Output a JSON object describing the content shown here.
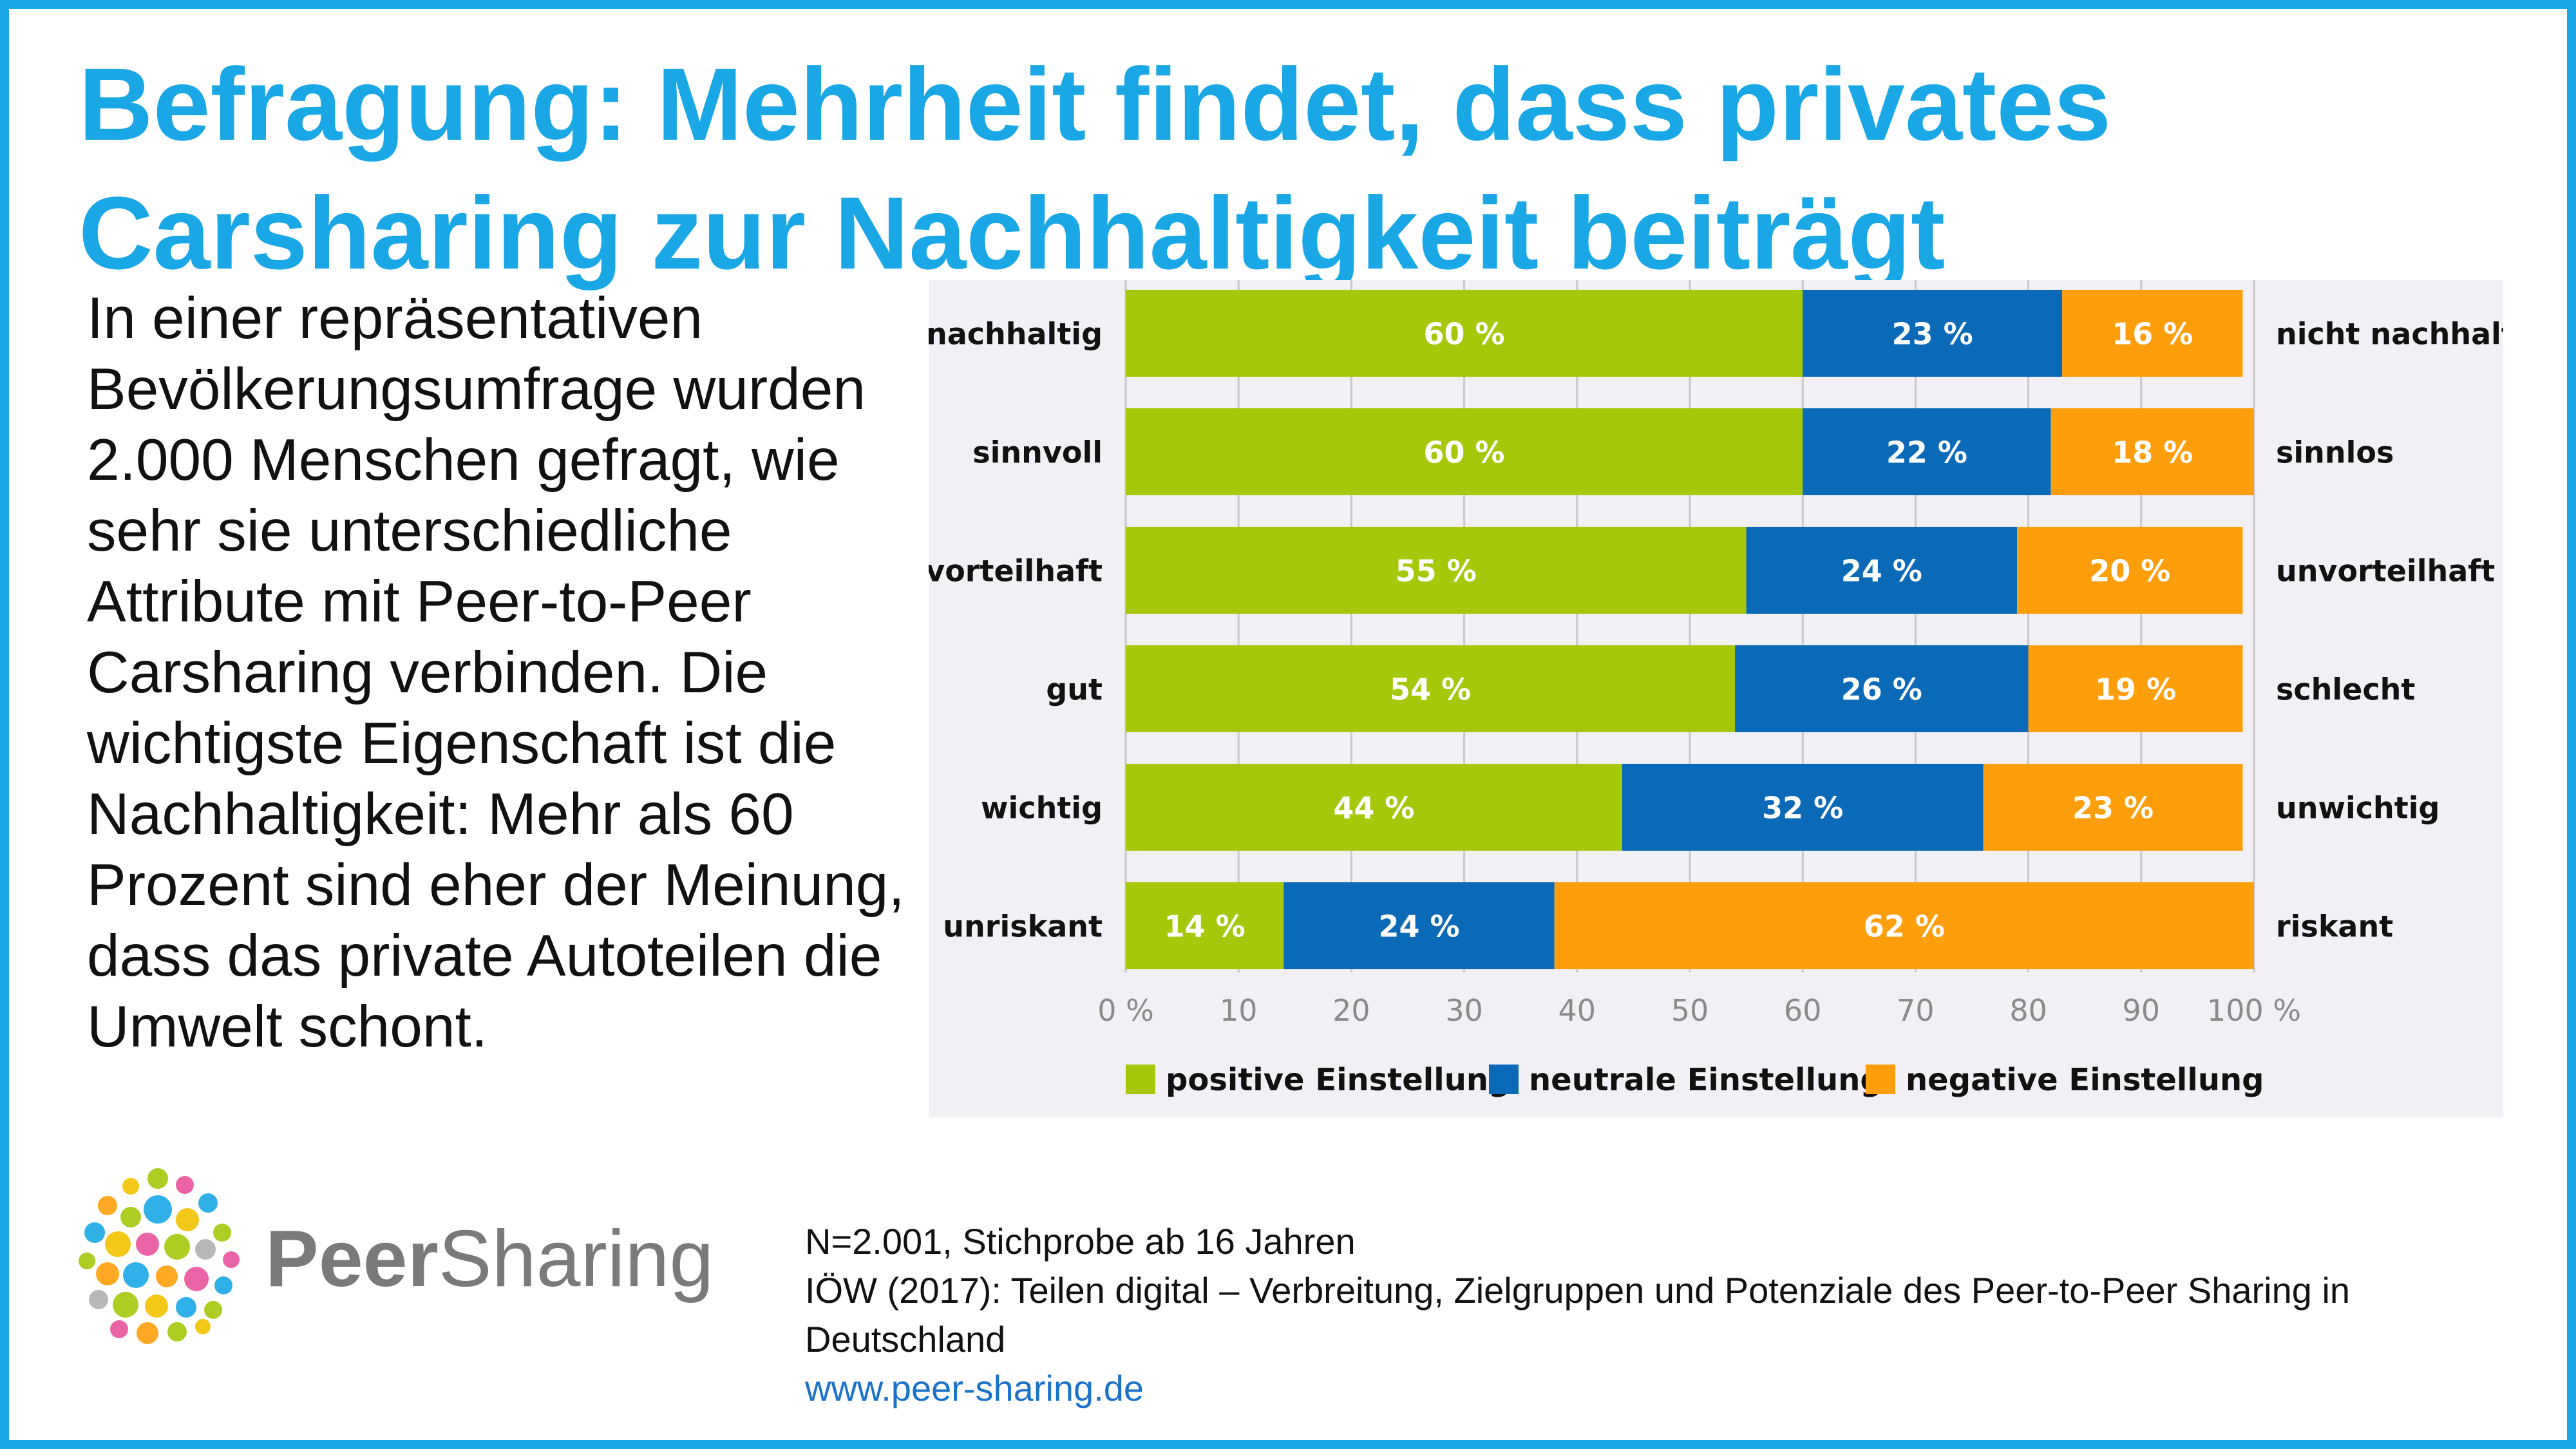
{
  "title": "Befragung: Mehrheit findet, dass privates Carsharing zur Nachhaltigkeit beiträgt",
  "intro": "In einer repräsentativen Bevölkerungsumfrage wurden 2.000 Menschen gefragt, wie sehr sie unterschiedliche Attribute mit Peer-to-Peer Carsharing verbinden. Die wichtigste Eigenschaft ist die Nachhaltigkeit: Mehr als 60 Prozent sind eher der Meinung, dass das private Autoteilen die Umwelt schont.",
  "logo": {
    "brand_part1": "Peer",
    "brand_part2": "Sharing"
  },
  "footer": {
    "sample": "N=2.001, Stichprobe ab 16 Jahren",
    "source": "IÖW (2017): Teilen digital – Verbreitung, Zielgruppen und Potenziale des Peer-to-Peer Sharing in Deutschland",
    "url": "www.peer-sharing.de"
  },
  "colors": {
    "positive": "#a5c80a",
    "neutral": "#0a6ab8",
    "negative": "#ff9e0b",
    "accent": "#1aa7e6"
  },
  "chart_data": {
    "type": "bar",
    "orientation": "horizontal",
    "stacked": true,
    "categories": [
      "nachhaltig",
      "sinnvoll",
      "vorteilhaft",
      "gut",
      "wichtig",
      "unriskant"
    ],
    "right_labels": [
      "nicht nachhaltig",
      "sinnlos",
      "unvorteilhaft",
      "schlecht",
      "unwichtig",
      "riskant"
    ],
    "series": [
      {
        "name": "positive Einstellung",
        "values": [
          60,
          60,
          55,
          54,
          44,
          14
        ],
        "labels": [
          "60 %",
          "60 %",
          "55 %",
          "54 %",
          "44 %",
          "14 %"
        ]
      },
      {
        "name": "neutrale Einstellung",
        "values": [
          23,
          22,
          24,
          26,
          32,
          24
        ],
        "labels": [
          "23 %",
          "22 %",
          "24 %",
          "26 %",
          "32 %",
          "24 %"
        ]
      },
      {
        "name": "negative Einstellung",
        "values": [
          16,
          18,
          20,
          19,
          23,
          62
        ],
        "labels": [
          "16 %",
          "18 %",
          "20 %",
          "19 %",
          "23 %",
          "62 %"
        ]
      }
    ],
    "xlim": [
      0,
      100
    ],
    "xticks": [
      0,
      10,
      20,
      30,
      40,
      50,
      60,
      70,
      80,
      90,
      100
    ],
    "xtick_labels": [
      "0 %",
      "10",
      "20",
      "30",
      "40",
      "50",
      "60",
      "70",
      "80",
      "90",
      "100 %"
    ],
    "grid": true,
    "legend_position": "bottom"
  }
}
